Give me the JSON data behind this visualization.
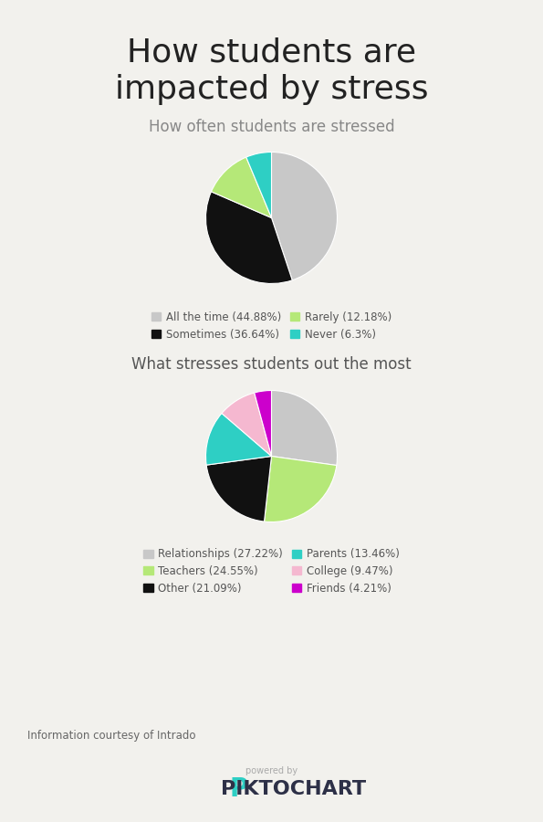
{
  "title": "How students are\nimpacted by stress",
  "title_fontsize": 26,
  "bg_color": "#f2f1ed",
  "chart1_title": "How often students are stressed",
  "chart1_values": [
    44.88,
    36.64,
    12.18,
    6.3
  ],
  "chart1_colors": [
    "#c8c8c8",
    "#111111",
    "#b5e878",
    "#2ecfc4"
  ],
  "chart1_labels": [
    "All the time (44.88%)",
    "Sometimes (36.64%)",
    "Rarely (12.18%)",
    "Never (6.3%)"
  ],
  "chart1_startangle": 90,
  "chart2_title": "What stresses students out the most",
  "chart2_values": [
    27.22,
    24.55,
    21.09,
    13.46,
    9.47,
    4.21
  ],
  "chart2_colors": [
    "#c8c8c8",
    "#b5e878",
    "#111111",
    "#2ecfc4",
    "#f5b8d0",
    "#cc00cc"
  ],
  "chart2_labels": [
    "Relationships (27.22%)",
    "Teachers (24.55%)",
    "Other (21.09%)",
    "Parents (13.46%)",
    "College (9.47%)",
    "Friends (4.21%)"
  ],
  "chart2_startangle": 90,
  "footnote": "Information courtesy of Intrado",
  "legend_fontsize": 8.5,
  "subtitle_fontsize": 12
}
